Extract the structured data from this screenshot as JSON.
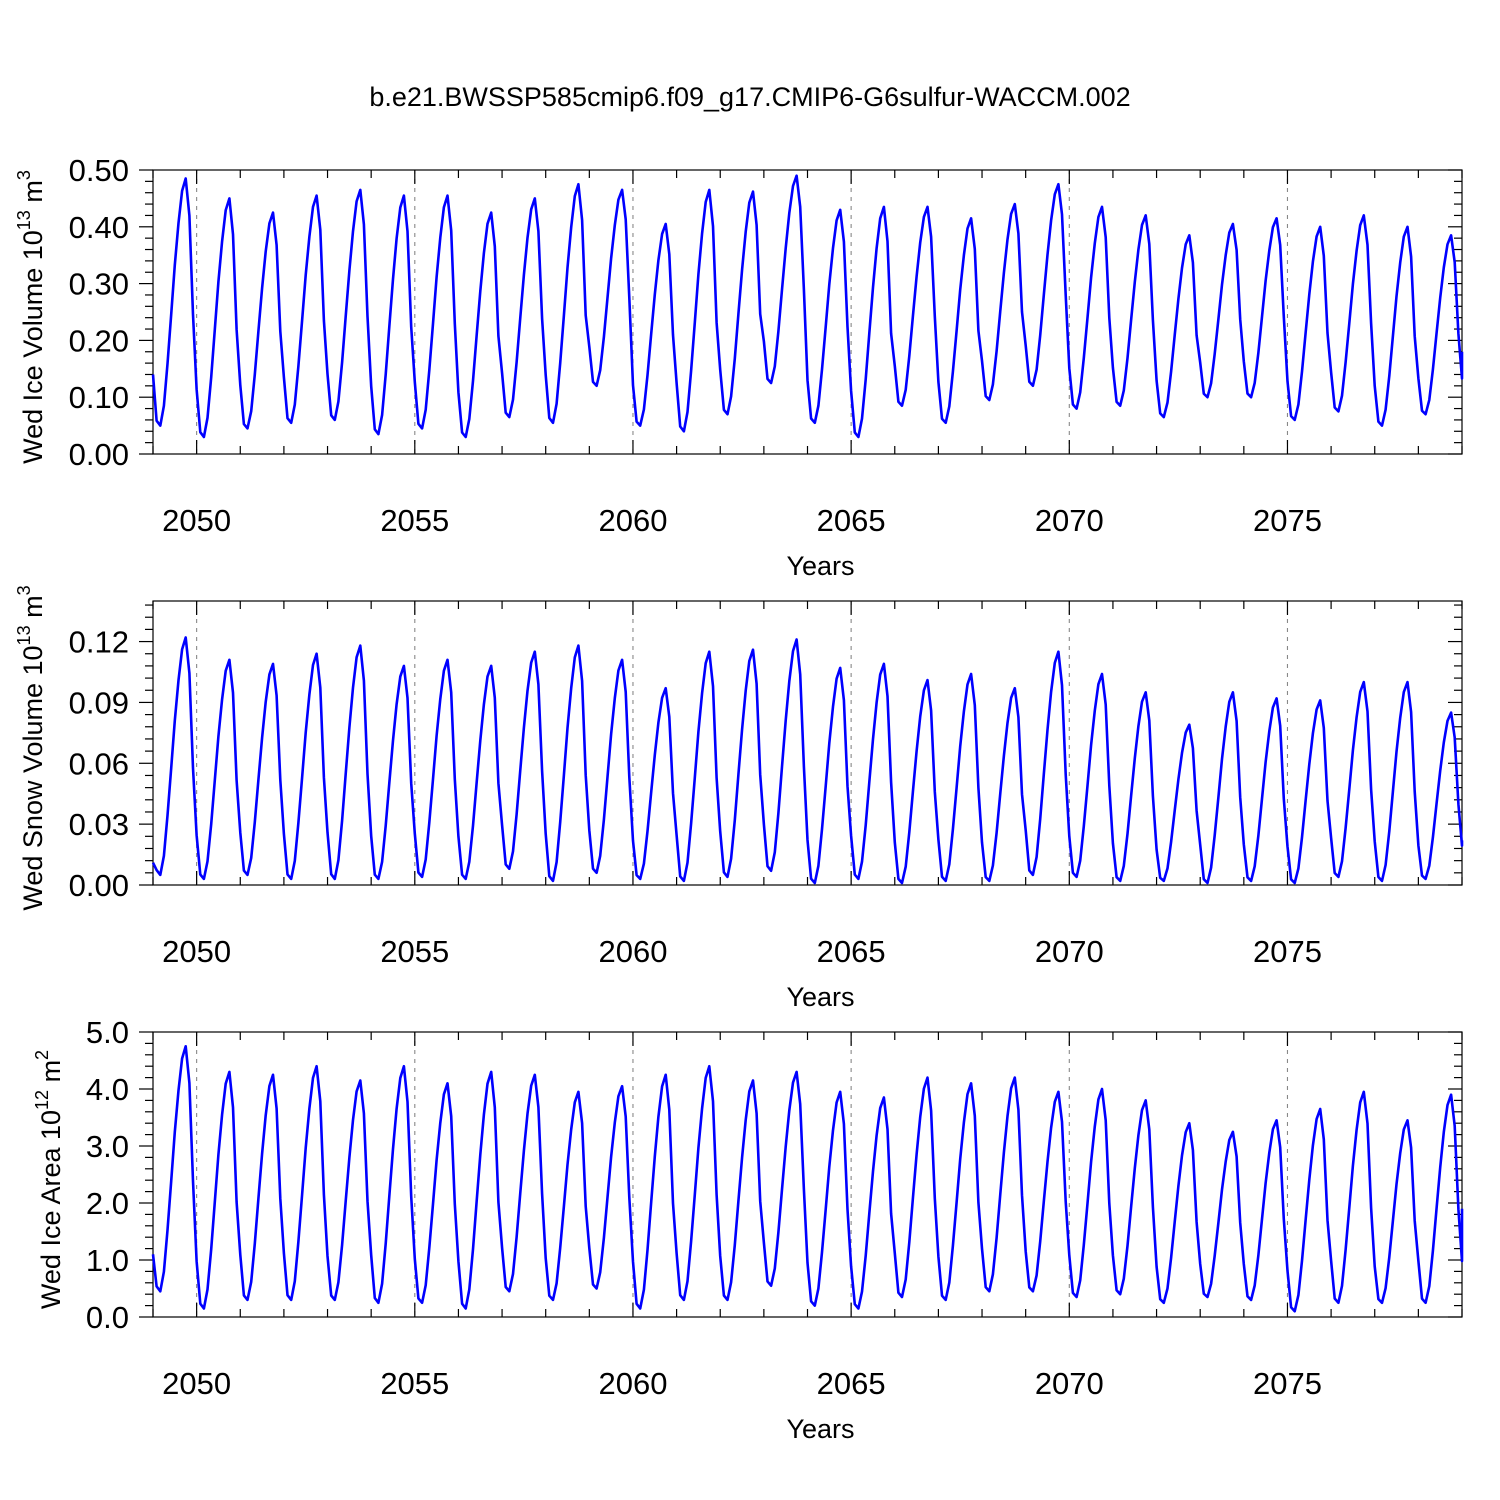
{
  "title": "b.e21.BWSSP585cmip6.f09_g17.CMIP6-G6sulfur-WACCM.002",
  "colors": {
    "line": "#0000ff",
    "axis": "#000000",
    "grid": "#888888"
  },
  "chart_data": [
    {
      "type": "line",
      "ylabel_text": "Wed Ice Volume 10",
      "ylabel_exp": "13",
      "ylabel_unit": " m",
      "ylabel_unit_exp": "3",
      "xlabel": "Years",
      "xlim": [
        2049,
        2079
      ],
      "ylim": [
        0,
        0.5
      ],
      "yticks": [
        0.0,
        0.1,
        0.2,
        0.3,
        0.4,
        0.5
      ],
      "ytick_labels": [
        "0.00",
        "0.10",
        "0.20",
        "0.30",
        "0.40",
        "0.50"
      ],
      "xticks": [
        2050,
        2055,
        2060,
        2065,
        2070,
        2075
      ],
      "xtick_labels": [
        "2050",
        "2055",
        "2060",
        "2065",
        "2070",
        "2075"
      ],
      "grid_x": [
        2050,
        2055,
        2060,
        2065,
        2070,
        2075
      ],
      "series": [
        {
          "name": "Wed Ice Volume",
          "start": 2049.0,
          "step": 0.0833333,
          "annual_max": [
            0.485,
            0.45,
            0.425,
            0.455,
            0.465,
            0.455,
            0.455,
            0.425,
            0.45,
            0.475,
            0.465,
            0.405,
            0.465,
            0.462,
            0.49,
            0.43,
            0.435,
            0.435,
            0.415,
            0.44,
            0.475,
            0.435,
            0.42,
            0.385,
            0.405,
            0.415,
            0.4,
            0.42,
            0.4,
            0.385
          ],
          "annual_min": [
            0.05,
            0.03,
            0.045,
            0.055,
            0.06,
            0.035,
            0.045,
            0.03,
            0.065,
            0.055,
            0.12,
            0.05,
            0.04,
            0.07,
            0.125,
            0.055,
            0.03,
            0.085,
            0.055,
            0.095,
            0.12,
            0.08,
            0.085,
            0.065,
            0.1,
            0.1,
            0.06,
            0.075,
            0.05,
            0.07
          ],
          "first": 0.14,
          "last": 0.18
        }
      ]
    },
    {
      "type": "line",
      "ylabel_text": "Wed Snow Volume 10",
      "ylabel_exp": "13",
      "ylabel_unit": " m",
      "ylabel_unit_exp": "3",
      "xlabel": "Years",
      "xlim": [
        2049,
        2079
      ],
      "ylim": [
        0,
        0.14
      ],
      "yticks": [
        0.0,
        0.03,
        0.06,
        0.09,
        0.12
      ],
      "ytick_labels": [
        "0.00",
        "0.03",
        "0.06",
        "0.09",
        "0.12"
      ],
      "xticks": [
        2050,
        2055,
        2060,
        2065,
        2070,
        2075
      ],
      "xtick_labels": [
        "2050",
        "2055",
        "2060",
        "2065",
        "2070",
        "2075"
      ],
      "grid_x": [
        2050,
        2055,
        2060,
        2065,
        2070,
        2075
      ],
      "series": [
        {
          "name": "Wed Snow Volume",
          "start": 2049.0,
          "step": 0.0833333,
          "annual_max": [
            0.122,
            0.111,
            0.109,
            0.114,
            0.118,
            0.108,
            0.111,
            0.108,
            0.115,
            0.118,
            0.111,
            0.097,
            0.115,
            0.116,
            0.121,
            0.107,
            0.109,
            0.101,
            0.104,
            0.097,
            0.115,
            0.104,
            0.095,
            0.079,
            0.095,
            0.092,
            0.091,
            0.1,
            0.1,
            0.085
          ],
          "annual_min": [
            0.005,
            0.003,
            0.005,
            0.003,
            0.003,
            0.003,
            0.004,
            0.003,
            0.008,
            0.002,
            0.006,
            0.003,
            0.002,
            0.004,
            0.007,
            0.001,
            0.003,
            0.001,
            0.002,
            0.002,
            0.005,
            0.004,
            0.002,
            0.002,
            0.001,
            0.002,
            0.001,
            0.004,
            0.002,
            0.003
          ],
          "first": 0.011,
          "last": 0.022
        }
      ]
    },
    {
      "type": "line",
      "ylabel_text": "Wed Ice Area 10",
      "ylabel_exp": "12",
      "ylabel_unit": " m",
      "ylabel_unit_exp": "2",
      "xlabel": "Years",
      "xlim": [
        2049,
        2079
      ],
      "ylim": [
        0,
        5.0
      ],
      "yticks": [
        0.0,
        1.0,
        2.0,
        3.0,
        4.0,
        5.0
      ],
      "ytick_labels": [
        "0.0",
        "1.0",
        "2.0",
        "3.0",
        "4.0",
        "5.0"
      ],
      "xticks": [
        2050,
        2055,
        2060,
        2065,
        2070,
        2075
      ],
      "xtick_labels": [
        "2050",
        "2055",
        "2060",
        "2065",
        "2070",
        "2075"
      ],
      "grid_x": [
        2050,
        2055,
        2060,
        2065,
        2070,
        2075
      ],
      "series": [
        {
          "name": "Wed Ice Area",
          "start": 2049.0,
          "step": 0.0833333,
          "annual_max": [
            4.75,
            4.3,
            4.25,
            4.4,
            4.15,
            4.4,
            4.1,
            4.3,
            4.25,
            3.95,
            4.05,
            4.25,
            4.4,
            4.15,
            4.3,
            3.95,
            3.85,
            4.2,
            4.1,
            4.2,
            3.95,
            4.0,
            3.8,
            3.4,
            3.25,
            3.45,
            3.65,
            3.95,
            3.45,
            3.9
          ],
          "annual_min": [
            0.45,
            0.15,
            0.3,
            0.3,
            0.3,
            0.25,
            0.25,
            0.15,
            0.45,
            0.3,
            0.5,
            0.15,
            0.3,
            0.3,
            0.55,
            0.2,
            0.15,
            0.35,
            0.3,
            0.45,
            0.45,
            0.35,
            0.4,
            0.25,
            0.35,
            0.3,
            0.1,
            0.25,
            0.25,
            0.25
          ],
          "first": 1.1,
          "last": 1.9
        }
      ]
    }
  ]
}
